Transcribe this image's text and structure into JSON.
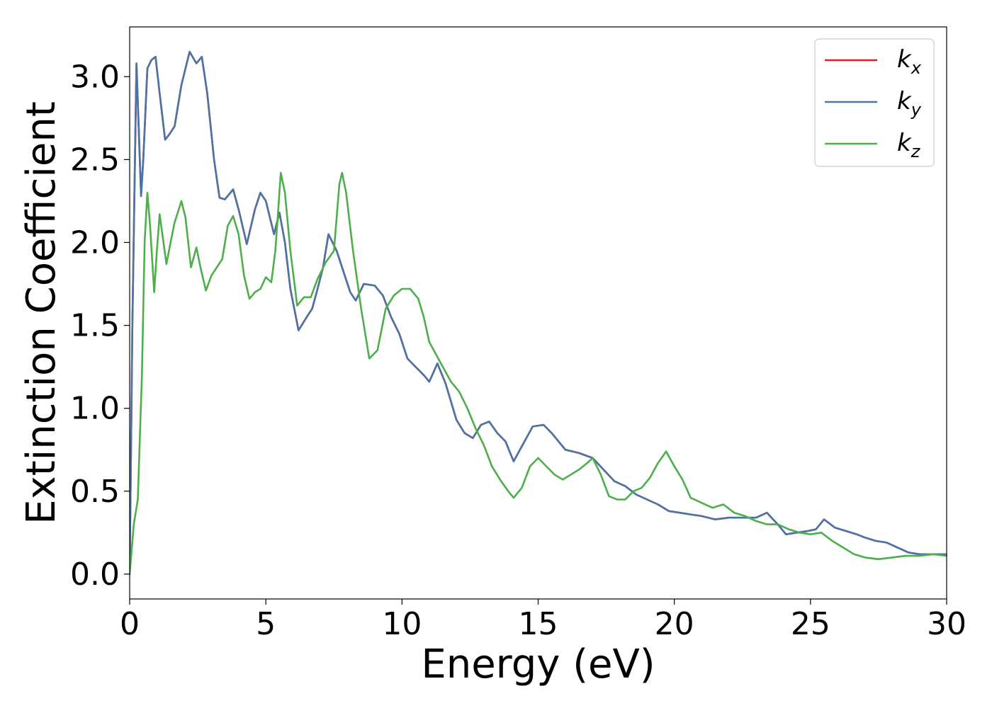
{
  "chart_data": {
    "type": "line",
    "title": "",
    "xlabel": "Energy (eV)",
    "ylabel": "Extinction Coefficient",
    "xlim": [
      0,
      30
    ],
    "ylim": [
      -0.15,
      3.3
    ],
    "xticks": [
      0,
      5,
      10,
      15,
      20,
      25,
      30
    ],
    "xtick_labels": [
      "0",
      "5",
      "10",
      "15",
      "20",
      "25",
      "30"
    ],
    "yticks": [
      0.0,
      0.5,
      1.0,
      1.5,
      2.0,
      2.5,
      3.0
    ],
    "ytick_labels": [
      "0.0",
      "0.5",
      "1.0",
      "1.5",
      "2.0",
      "2.5",
      "3.0"
    ],
    "grid": false,
    "legend_position": "top-right",
    "series": [
      {
        "name": "k_x",
        "legend_base": "k",
        "legend_sub": "x",
        "color": "#e41a1c",
        "points": [
          [
            0,
            0
          ],
          [
            0.1,
            1.5
          ],
          [
            0.25,
            3.08
          ],
          [
            0.35,
            2.6
          ],
          [
            0.42,
            2.28
          ],
          [
            0.5,
            2.5
          ],
          [
            0.65,
            3.05
          ],
          [
            0.8,
            3.1
          ],
          [
            0.95,
            3.12
          ],
          [
            1.1,
            2.9
          ],
          [
            1.3,
            2.62
          ],
          [
            1.45,
            2.65
          ],
          [
            1.65,
            2.7
          ],
          [
            1.9,
            2.95
          ],
          [
            2.2,
            3.15
          ],
          [
            2.45,
            3.08
          ],
          [
            2.65,
            3.12
          ],
          [
            2.85,
            2.9
          ],
          [
            3.1,
            2.5
          ],
          [
            3.3,
            2.27
          ],
          [
            3.5,
            2.26
          ],
          [
            3.8,
            2.32
          ],
          [
            4.0,
            2.2
          ],
          [
            4.3,
            1.99
          ],
          [
            4.6,
            2.2
          ],
          [
            4.8,
            2.3
          ],
          [
            5.0,
            2.25
          ],
          [
            5.3,
            2.05
          ],
          [
            5.5,
            2.18
          ],
          [
            5.7,
            2.0
          ],
          [
            5.9,
            1.72
          ],
          [
            6.2,
            1.47
          ],
          [
            6.5,
            1.55
          ],
          [
            6.7,
            1.6
          ],
          [
            6.9,
            1.72
          ],
          [
            7.1,
            1.85
          ],
          [
            7.3,
            2.05
          ],
          [
            7.6,
            1.95
          ],
          [
            7.9,
            1.8
          ],
          [
            8.1,
            1.7
          ],
          [
            8.3,
            1.65
          ],
          [
            8.6,
            1.75
          ],
          [
            9.0,
            1.74
          ],
          [
            9.3,
            1.68
          ],
          [
            9.6,
            1.55
          ],
          [
            9.9,
            1.45
          ],
          [
            10.2,
            1.3
          ],
          [
            10.5,
            1.25
          ],
          [
            10.8,
            1.2
          ],
          [
            11.0,
            1.16
          ],
          [
            11.3,
            1.27
          ],
          [
            11.6,
            1.15
          ],
          [
            12.0,
            0.93
          ],
          [
            12.3,
            0.85
          ],
          [
            12.6,
            0.82
          ],
          [
            12.9,
            0.9
          ],
          [
            13.2,
            0.92
          ],
          [
            13.5,
            0.85
          ],
          [
            13.8,
            0.8
          ],
          [
            14.1,
            0.68
          ],
          [
            14.4,
            0.77
          ],
          [
            14.8,
            0.89
          ],
          [
            15.2,
            0.9
          ],
          [
            15.5,
            0.85
          ],
          [
            16.0,
            0.75
          ],
          [
            16.5,
            0.73
          ],
          [
            17.0,
            0.7
          ],
          [
            17.4,
            0.63
          ],
          [
            17.8,
            0.56
          ],
          [
            18.2,
            0.53
          ],
          [
            18.6,
            0.48
          ],
          [
            19.0,
            0.45
          ],
          [
            19.4,
            0.42
          ],
          [
            19.8,
            0.38
          ],
          [
            20.2,
            0.37
          ],
          [
            20.6,
            0.36
          ],
          [
            21.0,
            0.35
          ],
          [
            21.5,
            0.33
          ],
          [
            22.0,
            0.34
          ],
          [
            22.5,
            0.34
          ],
          [
            23.0,
            0.34
          ],
          [
            23.4,
            0.37
          ],
          [
            23.8,
            0.3
          ],
          [
            24.1,
            0.24
          ],
          [
            24.5,
            0.25
          ],
          [
            24.9,
            0.26
          ],
          [
            25.2,
            0.27
          ],
          [
            25.5,
            0.33
          ],
          [
            25.9,
            0.28
          ],
          [
            26.3,
            0.26
          ],
          [
            26.7,
            0.24
          ],
          [
            27.0,
            0.22
          ],
          [
            27.4,
            0.2
          ],
          [
            27.8,
            0.19
          ],
          [
            28.2,
            0.16
          ],
          [
            28.6,
            0.13
          ],
          [
            29.0,
            0.12
          ],
          [
            29.5,
            0.12
          ],
          [
            30.0,
            0.12
          ]
        ]
      },
      {
        "name": "k_y",
        "legend_base": "k",
        "legend_sub": "y",
        "color": "#4a74a8",
        "points": [
          [
            0,
            0
          ],
          [
            0.1,
            1.5
          ],
          [
            0.25,
            3.08
          ],
          [
            0.35,
            2.6
          ],
          [
            0.42,
            2.28
          ],
          [
            0.5,
            2.5
          ],
          [
            0.65,
            3.05
          ],
          [
            0.8,
            3.1
          ],
          [
            0.95,
            3.12
          ],
          [
            1.1,
            2.9
          ],
          [
            1.3,
            2.62
          ],
          [
            1.45,
            2.65
          ],
          [
            1.65,
            2.7
          ],
          [
            1.9,
            2.95
          ],
          [
            2.2,
            3.15
          ],
          [
            2.45,
            3.08
          ],
          [
            2.65,
            3.12
          ],
          [
            2.85,
            2.9
          ],
          [
            3.1,
            2.5
          ],
          [
            3.3,
            2.27
          ],
          [
            3.5,
            2.26
          ],
          [
            3.8,
            2.32
          ],
          [
            4.0,
            2.2
          ],
          [
            4.3,
            1.99
          ],
          [
            4.6,
            2.2
          ],
          [
            4.8,
            2.3
          ],
          [
            5.0,
            2.25
          ],
          [
            5.3,
            2.05
          ],
          [
            5.5,
            2.18
          ],
          [
            5.7,
            2.0
          ],
          [
            5.9,
            1.72
          ],
          [
            6.2,
            1.47
          ],
          [
            6.5,
            1.55
          ],
          [
            6.7,
            1.6
          ],
          [
            6.9,
            1.72
          ],
          [
            7.1,
            1.85
          ],
          [
            7.3,
            2.05
          ],
          [
            7.6,
            1.95
          ],
          [
            7.9,
            1.8
          ],
          [
            8.1,
            1.7
          ],
          [
            8.3,
            1.65
          ],
          [
            8.6,
            1.75
          ],
          [
            9.0,
            1.74
          ],
          [
            9.3,
            1.68
          ],
          [
            9.6,
            1.55
          ],
          [
            9.9,
            1.45
          ],
          [
            10.2,
            1.3
          ],
          [
            10.5,
            1.25
          ],
          [
            10.8,
            1.2
          ],
          [
            11.0,
            1.16
          ],
          [
            11.3,
            1.27
          ],
          [
            11.6,
            1.15
          ],
          [
            12.0,
            0.93
          ],
          [
            12.3,
            0.85
          ],
          [
            12.6,
            0.82
          ],
          [
            12.9,
            0.9
          ],
          [
            13.2,
            0.92
          ],
          [
            13.5,
            0.85
          ],
          [
            13.8,
            0.8
          ],
          [
            14.1,
            0.68
          ],
          [
            14.4,
            0.77
          ],
          [
            14.8,
            0.89
          ],
          [
            15.2,
            0.9
          ],
          [
            15.5,
            0.85
          ],
          [
            16.0,
            0.75
          ],
          [
            16.5,
            0.73
          ],
          [
            17.0,
            0.7
          ],
          [
            17.4,
            0.63
          ],
          [
            17.8,
            0.56
          ],
          [
            18.2,
            0.53
          ],
          [
            18.6,
            0.48
          ],
          [
            19.0,
            0.45
          ],
          [
            19.4,
            0.42
          ],
          [
            19.8,
            0.38
          ],
          [
            20.2,
            0.37
          ],
          [
            20.6,
            0.36
          ],
          [
            21.0,
            0.35
          ],
          [
            21.5,
            0.33
          ],
          [
            22.0,
            0.34
          ],
          [
            22.5,
            0.34
          ],
          [
            23.0,
            0.34
          ],
          [
            23.4,
            0.37
          ],
          [
            23.8,
            0.3
          ],
          [
            24.1,
            0.24
          ],
          [
            24.5,
            0.25
          ],
          [
            24.9,
            0.26
          ],
          [
            25.2,
            0.27
          ],
          [
            25.5,
            0.33
          ],
          [
            25.9,
            0.28
          ],
          [
            26.3,
            0.26
          ],
          [
            26.7,
            0.24
          ],
          [
            27.0,
            0.22
          ],
          [
            27.4,
            0.2
          ],
          [
            27.8,
            0.19
          ],
          [
            28.2,
            0.16
          ],
          [
            28.6,
            0.13
          ],
          [
            29.0,
            0.12
          ],
          [
            29.5,
            0.12
          ],
          [
            30.0,
            0.12
          ]
        ]
      },
      {
        "name": "k_z",
        "legend_base": "k",
        "legend_sub": "z",
        "color": "#4daf4a",
        "points": [
          [
            0,
            0
          ],
          [
            0.15,
            0.3
          ],
          [
            0.3,
            0.45
          ],
          [
            0.45,
            1.2
          ],
          [
            0.55,
            2.0
          ],
          [
            0.65,
            2.3
          ],
          [
            0.75,
            2.1
          ],
          [
            0.9,
            1.7
          ],
          [
            1.0,
            1.95
          ],
          [
            1.1,
            2.17
          ],
          [
            1.2,
            2.05
          ],
          [
            1.35,
            1.87
          ],
          [
            1.5,
            2.0
          ],
          [
            1.65,
            2.12
          ],
          [
            1.9,
            2.25
          ],
          [
            2.05,
            2.15
          ],
          [
            2.25,
            1.85
          ],
          [
            2.45,
            1.97
          ],
          [
            2.6,
            1.85
          ],
          [
            2.8,
            1.71
          ],
          [
            3.0,
            1.8
          ],
          [
            3.2,
            1.85
          ],
          [
            3.4,
            1.9
          ],
          [
            3.6,
            2.1
          ],
          [
            3.8,
            2.16
          ],
          [
            4.0,
            2.05
          ],
          [
            4.2,
            1.8
          ],
          [
            4.4,
            1.66
          ],
          [
            4.6,
            1.7
          ],
          [
            4.8,
            1.72
          ],
          [
            5.0,
            1.79
          ],
          [
            5.2,
            1.76
          ],
          [
            5.35,
            1.95
          ],
          [
            5.55,
            2.42
          ],
          [
            5.7,
            2.3
          ],
          [
            5.9,
            1.95
          ],
          [
            6.15,
            1.62
          ],
          [
            6.4,
            1.67
          ],
          [
            6.65,
            1.67
          ],
          [
            6.9,
            1.78
          ],
          [
            7.2,
            1.88
          ],
          [
            7.5,
            1.95
          ],
          [
            7.7,
            2.35
          ],
          [
            7.8,
            2.42
          ],
          [
            7.95,
            2.3
          ],
          [
            8.2,
            1.95
          ],
          [
            8.5,
            1.6
          ],
          [
            8.8,
            1.3
          ],
          [
            9.1,
            1.35
          ],
          [
            9.4,
            1.6
          ],
          [
            9.7,
            1.68
          ],
          [
            10.0,
            1.72
          ],
          [
            10.3,
            1.72
          ],
          [
            10.6,
            1.66
          ],
          [
            10.8,
            1.55
          ],
          [
            11.0,
            1.4
          ],
          [
            11.4,
            1.28
          ],
          [
            11.8,
            1.16
          ],
          [
            12.1,
            1.1
          ],
          [
            12.4,
            1.0
          ],
          [
            12.7,
            0.88
          ],
          [
            13.0,
            0.78
          ],
          [
            13.3,
            0.65
          ],
          [
            13.6,
            0.57
          ],
          [
            13.9,
            0.5
          ],
          [
            14.1,
            0.46
          ],
          [
            14.4,
            0.52
          ],
          [
            14.7,
            0.65
          ],
          [
            15.0,
            0.7
          ],
          [
            15.3,
            0.65
          ],
          [
            15.6,
            0.6
          ],
          [
            15.9,
            0.57
          ],
          [
            16.2,
            0.6
          ],
          [
            16.5,
            0.63
          ],
          [
            16.8,
            0.67
          ],
          [
            17.0,
            0.7
          ],
          [
            17.3,
            0.6
          ],
          [
            17.6,
            0.47
          ],
          [
            17.9,
            0.45
          ],
          [
            18.2,
            0.45
          ],
          [
            18.5,
            0.5
          ],
          [
            18.8,
            0.52
          ],
          [
            19.1,
            0.58
          ],
          [
            19.4,
            0.67
          ],
          [
            19.7,
            0.74
          ],
          [
            20.0,
            0.65
          ],
          [
            20.3,
            0.57
          ],
          [
            20.6,
            0.46
          ],
          [
            21.0,
            0.43
          ],
          [
            21.4,
            0.4
          ],
          [
            21.8,
            0.42
          ],
          [
            22.2,
            0.37
          ],
          [
            22.6,
            0.35
          ],
          [
            23.0,
            0.32
          ],
          [
            23.4,
            0.3
          ],
          [
            23.8,
            0.3
          ],
          [
            24.2,
            0.27
          ],
          [
            24.6,
            0.25
          ],
          [
            25.0,
            0.24
          ],
          [
            25.4,
            0.25
          ],
          [
            25.8,
            0.2
          ],
          [
            26.2,
            0.16
          ],
          [
            26.6,
            0.12
          ],
          [
            27.0,
            0.1
          ],
          [
            27.5,
            0.09
          ],
          [
            28.0,
            0.1
          ],
          [
            28.5,
            0.11
          ],
          [
            29.0,
            0.11
          ],
          [
            29.5,
            0.12
          ],
          [
            30.0,
            0.11
          ]
        ]
      }
    ]
  }
}
